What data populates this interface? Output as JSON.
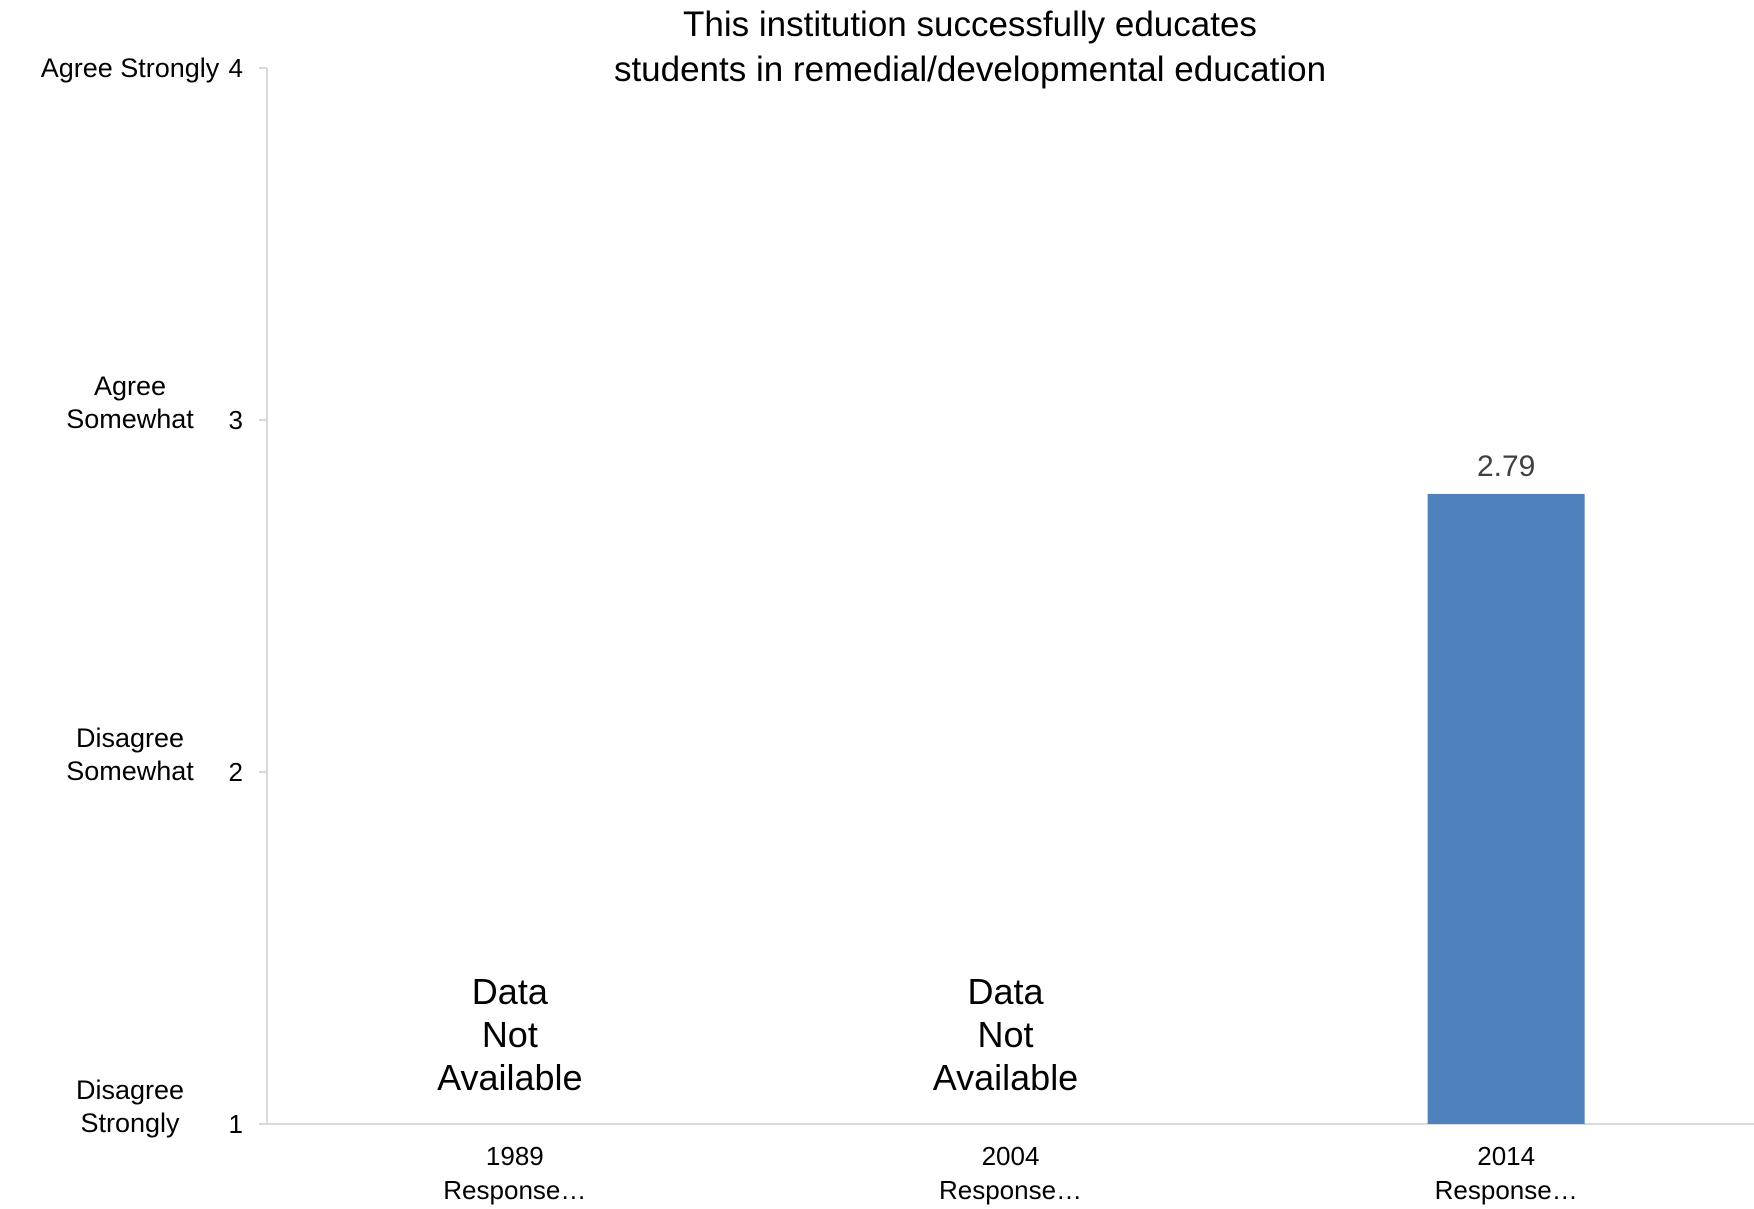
{
  "chart_data": {
    "type": "bar",
    "title": [
      "This institution successfully educates",
      "students in remedial/developmental education"
    ],
    "xlabel": "",
    "ylabel": "",
    "ylim": [
      1,
      4
    ],
    "y_ticks": [
      {
        "value": 4,
        "label": "4",
        "name": [
          "Agree Strongly"
        ]
      },
      {
        "value": 3,
        "label": "3",
        "name": [
          "Agree",
          "Somewhat"
        ]
      },
      {
        "value": 2,
        "label": "2",
        "name": [
          "Disagree",
          "Somewhat"
        ]
      },
      {
        "value": 1,
        "label": "1",
        "name": [
          "Disagree",
          "Strongly"
        ]
      }
    ],
    "categories": [
      {
        "label": [
          "1989",
          "Response…"
        ],
        "value": null,
        "note": [
          "Data",
          "Not",
          "Available"
        ]
      },
      {
        "label": [
          "2004",
          "Response…"
        ],
        "value": null,
        "note": [
          "Data",
          "Not",
          "Available"
        ]
      },
      {
        "label": [
          "2014",
          "Response…"
        ],
        "value": 2.79,
        "data_label": "2.79"
      }
    ],
    "bar_color": "#4f81bd",
    "grid": false,
    "legend": "none"
  }
}
